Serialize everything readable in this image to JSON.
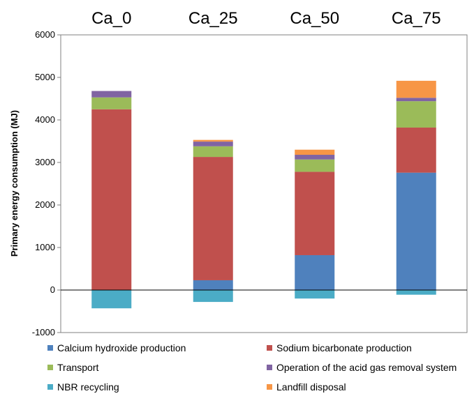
{
  "chart_data": {
    "type": "bar",
    "stacked": true,
    "categories": [
      "Ca_0",
      "Ca_25",
      "Ca_50",
      "Ca_75"
    ],
    "ylabel": "Primary energy consumption (MJ)",
    "ylim": [
      -1000,
      6000
    ],
    "yticks": [
      -1000,
      0,
      1000,
      2000,
      3000,
      4000,
      5000,
      6000
    ],
    "grid": false,
    "legend_position": "bottom",
    "series": [
      {
        "name": "Calcium hydroxide production",
        "color": "#4F81BD",
        "values": [
          0,
          230,
          820,
          2760
        ]
      },
      {
        "name": "Sodium bicarbonate production",
        "color": "#C0504D",
        "values": [
          4250,
          2900,
          1960,
          1060
        ]
      },
      {
        "name": "Transport",
        "color": "#9BBB59",
        "values": [
          280,
          250,
          290,
          620
        ]
      },
      {
        "name": "Operation of the acid gas removal system",
        "color": "#8064A2",
        "values": [
          150,
          110,
          110,
          80
        ]
      },
      {
        "name": "NBR recycling",
        "color": "#4BACC6",
        "values": [
          -430,
          -280,
          -200,
          -110
        ]
      },
      {
        "name": "Landfill disposal",
        "color": "#F79646",
        "values": [
          0,
          40,
          120,
          400
        ]
      }
    ]
  }
}
